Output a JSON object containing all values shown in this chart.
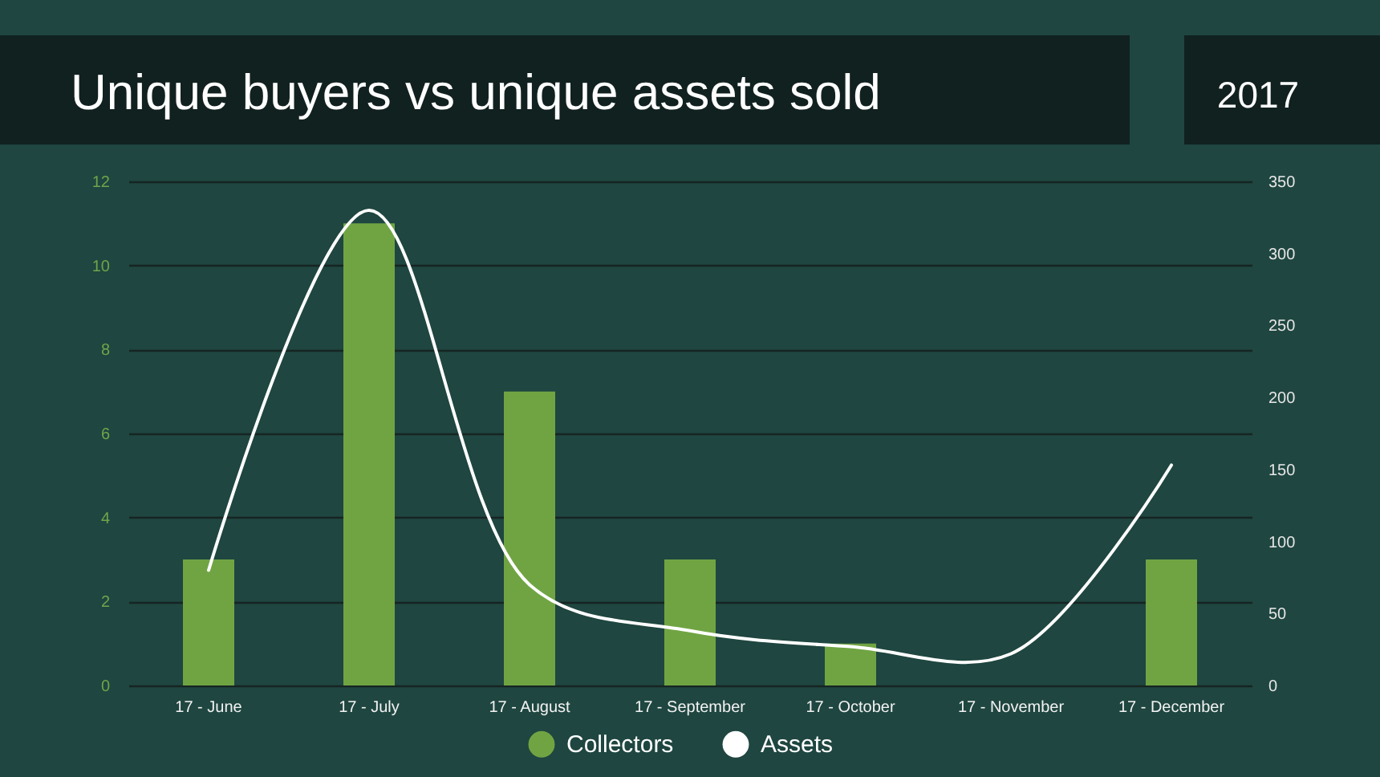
{
  "chart_data": {
    "type": "bar",
    "title": "Unique buyers vs unique assets sold",
    "subtitle": "2017",
    "categories": [
      "17 - June",
      "17 - July",
      "17 - August",
      "17 - September",
      "17 - October",
      "17 - November",
      "17 - December"
    ],
    "series": [
      {
        "name": "Collectors",
        "color": "#70a443",
        "values": [
          3,
          11,
          7,
          3,
          1,
          0,
          3
        ]
      },
      {
        "name": "Assets",
        "type": "line",
        "axis": "y2",
        "color": "#ffffff",
        "values": [
          80,
          330,
          70,
          38,
          27,
          22,
          153
        ]
      }
    ],
    "ylim": [
      0,
      12
    ],
    "yticks": [
      0,
      2,
      4,
      6,
      8,
      10,
      12
    ],
    "y2lim": [
      0,
      350
    ],
    "y2ticks": [
      0,
      50,
      100,
      150,
      200,
      250,
      300,
      350
    ],
    "grid": "y",
    "legend": "bottom"
  }
}
